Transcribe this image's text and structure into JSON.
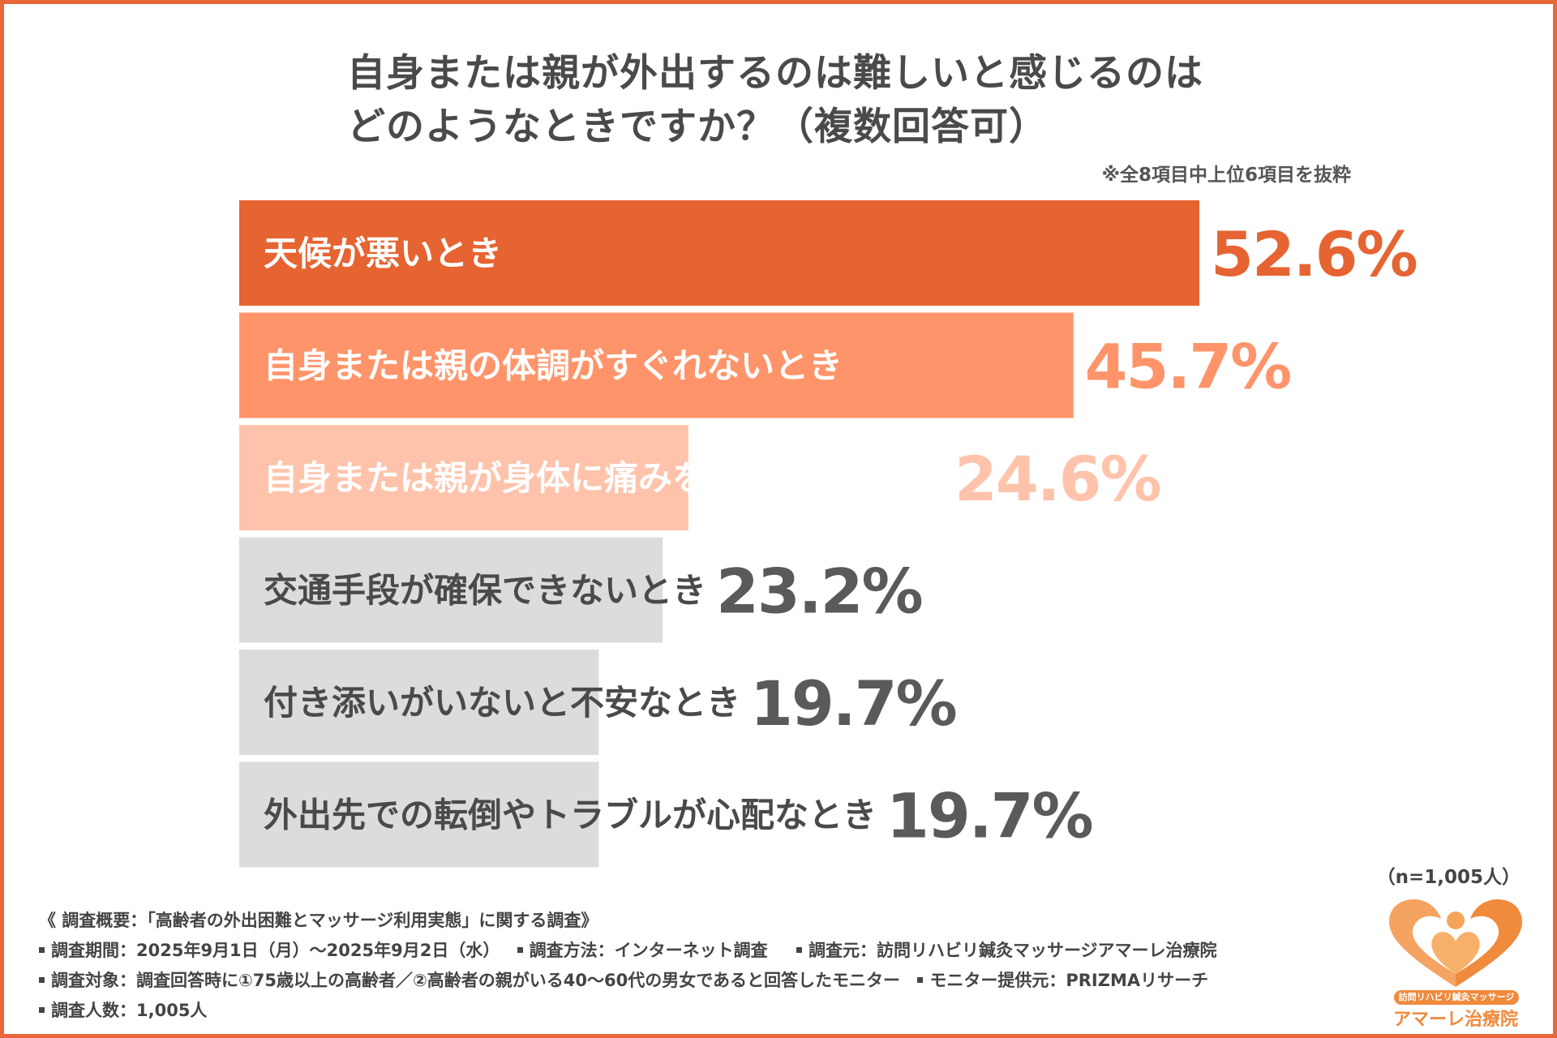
{
  "title": {
    "line1": "自身または親が外出するのは難しいと感じるのは",
    "line2": "どのようなときですか？（複数回答可）"
  },
  "note": "※全8項目中上位6項目を抜粋",
  "chart_data": {
    "type": "bar",
    "orientation": "horizontal",
    "categories": [
      "天候が悪いとき",
      "自身または親の体調がすぐれないとき",
      "自身または親が身体に痛みを感じているとき",
      "交通手段が確保できないとき",
      "付き添いがいないと不安なとき",
      "外出先での転倒やトラブルが心配なとき"
    ],
    "values": [
      52.6,
      45.7,
      24.6,
      23.2,
      19.7,
      19.7
    ],
    "value_labels": [
      "52.6%",
      "45.7%",
      "24.6%",
      "23.2%",
      "19.7%",
      "19.7%"
    ],
    "unit": "%",
    "xlim": [
      0,
      52.6
    ],
    "grid": false,
    "bar_colors": [
      "#e56431",
      "#ff946a",
      "#ffc3ac",
      "#dcdcdc",
      "#dcdcdc",
      "#dcdcdc"
    ],
    "value_colors": [
      "#e56431",
      "#ff946a",
      "#ffc3ac",
      "#5a5a5a",
      "#5a5a5a",
      "#5a5a5a"
    ],
    "label_colors": [
      "#ffffff",
      "#ffffff",
      "#ffffff",
      "#4a4a4a",
      "#4a4a4a",
      "#4a4a4a"
    ]
  },
  "sample_size": "（n=1,005人）",
  "survey": {
    "heading": "《 調査概要：「高齢者の外出困難とマッサージ利用実態」に関する調査》",
    "period": "調査期間：2025年9月1日（月）〜2025年9月2日（水）",
    "method": "調査方法：インターネット調査",
    "source": "調査元：訪問リハビリ鍼灸マッサージアマーレ治療院",
    "target": "調査対象：調査回答時に①75歳以上の高齢者／②高齢者の親がいる40〜60代の男女であると回答したモニター",
    "provider": "モニター提供元：PRIZMAリサーチ",
    "count": "調査人数：1,005人"
  },
  "logo": {
    "subtitle": "訪問リハビリ鍼灸マッサージ",
    "name": "アマーレ治療院",
    "color": "#f08a3c"
  }
}
